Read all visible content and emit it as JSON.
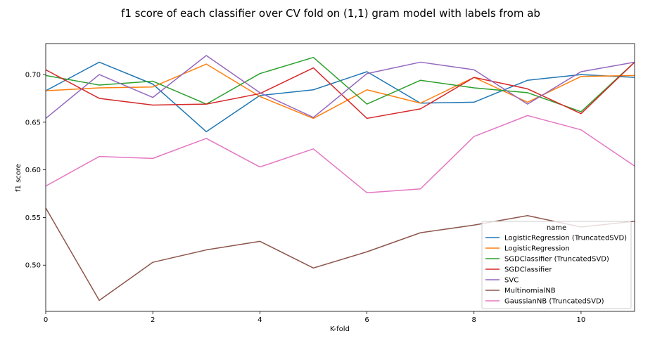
{
  "chart_data": {
    "type": "line",
    "title": "f1 score of each classifier over CV fold on (1,1) gram model with labels from ab",
    "xlabel": "K-fold",
    "ylabel": "f1 score",
    "xlim": [
      0,
      11
    ],
    "ylim": [
      0.4515,
      0.7325
    ],
    "xticks": [
      0,
      2,
      4,
      6,
      8,
      10
    ],
    "yticks": [
      0.5,
      0.55,
      0.6,
      0.65,
      0.7
    ],
    "ytick_labels": [
      "0.50",
      "0.55",
      "0.60",
      "0.65",
      "0.70"
    ],
    "x": [
      0,
      1,
      2,
      3,
      4,
      5,
      6,
      7,
      8,
      9,
      10,
      11
    ],
    "legend": {
      "title": "name",
      "placement": "lower-right"
    },
    "grid": false,
    "series": [
      {
        "name": "LogisticRegression (TruncatedSVD)",
        "color": "#1f77b4",
        "values": [
          0.683,
          0.713,
          0.69,
          0.64,
          0.678,
          0.684,
          0.703,
          0.67,
          0.671,
          0.694,
          0.7,
          0.697
        ]
      },
      {
        "name": "LogisticRegression",
        "color": "#ff7f0e",
        "values": [
          0.683,
          0.686,
          0.687,
          0.711,
          0.677,
          0.654,
          0.684,
          0.67,
          0.697,
          0.671,
          0.698,
          0.699
        ]
      },
      {
        "name": "SGDClassifier (TruncatedSVD)",
        "color": "#2ca02c",
        "values": [
          0.699,
          0.689,
          0.693,
          0.669,
          0.701,
          0.718,
          0.669,
          0.694,
          0.686,
          0.681,
          0.661,
          0.713
        ]
      },
      {
        "name": "SGDClassifier",
        "color": "#d62728",
        "values": [
          0.705,
          0.675,
          0.668,
          0.669,
          0.68,
          0.707,
          0.654,
          0.664,
          0.697,
          0.685,
          0.659,
          0.713
        ]
      },
      {
        "name": "SVC",
        "color": "#9467bd",
        "values": [
          0.654,
          0.7,
          0.676,
          0.72,
          0.681,
          0.655,
          0.701,
          0.713,
          0.705,
          0.669,
          0.703,
          0.713
        ]
      },
      {
        "name": "MultinomialNB",
        "color": "#8c564b",
        "values": [
          0.56,
          0.463,
          0.503,
          0.516,
          0.525,
          0.497,
          0.514,
          0.534,
          0.542,
          0.552,
          0.54,
          0.546
        ]
      },
      {
        "name": "GaussianNB (TruncatedSVD)",
        "color": "#e377c2",
        "values": [
          0.583,
          0.614,
          0.612,
          0.633,
          0.603,
          0.622,
          0.576,
          0.58,
          0.635,
          0.657,
          0.642,
          0.604
        ]
      }
    ]
  }
}
